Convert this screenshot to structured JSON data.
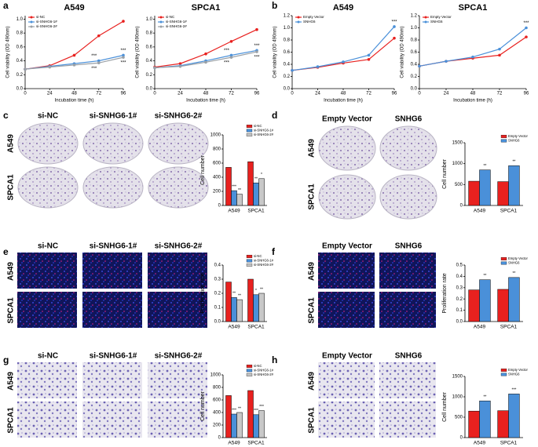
{
  "panel_labels": [
    "a",
    "b",
    "c",
    "d",
    "e",
    "f",
    "g",
    "h"
  ],
  "image_panels": [
    {
      "kind": "plate",
      "columns": [
        "si-NC",
        "si-SNHG6-1#",
        "si-SNHG6-2#"
      ],
      "rows": [
        "A549",
        "SPCA1"
      ]
    },
    {
      "kind": "plate",
      "columns": [
        "Empty Vector",
        "SNHG6"
      ],
      "rows": [
        "A549",
        "SPCA1"
      ]
    },
    {
      "kind": "fluor",
      "columns": [
        "si-NC",
        "si-SNHG6-1#",
        "si-SNHG6-2#"
      ],
      "rows": [
        "A549",
        "SPCA1"
      ]
    },
    {
      "kind": "fluor",
      "columns": [
        "Empty Vector",
        "SNHG6"
      ],
      "rows": [
        "A549",
        "SPCA1"
      ]
    },
    {
      "kind": "stain",
      "columns": [
        "si-NC",
        "si-SNHG6-1#",
        "si-SNHG6-2#"
      ],
      "rows": [
        "A549",
        "SPCA1"
      ]
    },
    {
      "kind": "stain",
      "columns": [
        "Empty Vector",
        "SNHG6"
      ],
      "rows": [
        "A549",
        "SPCA1"
      ]
    }
  ],
  "chart_data": [
    {
      "type": "line",
      "title": "A549",
      "x_label": "Incubation time (h)",
      "y_label": "Cell viability (OD 490nm)",
      "x": [
        0,
        24,
        48,
        72,
        96
      ],
      "xlim": [
        0,
        96
      ],
      "xticks": [
        0,
        24,
        48,
        72,
        96
      ],
      "ylim": [
        0,
        1.05
      ],
      "yticks": [
        {
          "value": 0,
          "label": "0.0"
        },
        0.2,
        0.4,
        0.6,
        0.8,
        {
          "value": 1,
          "label": "1.0"
        }
      ],
      "series": [
        {
          "name": "si-NC",
          "color": "#e8211f",
          "values": [
            0.28,
            0.33,
            0.48,
            0.76,
            0.97
          ]
        },
        {
          "name": "si-SNHG6-1#",
          "color": "#4a90d9",
          "values": [
            0.28,
            0.32,
            0.36,
            0.4,
            0.48
          ],
          "annotations": [
            null,
            null,
            null,
            "***",
            "***"
          ]
        },
        {
          "name": "si-SNHG6-2#",
          "color": "#9aa0a6",
          "values": [
            0.28,
            0.31,
            0.34,
            0.37,
            0.45
          ],
          "annotations": [
            null,
            null,
            null,
            "***",
            "***"
          ]
        }
      ]
    },
    {
      "type": "line",
      "title": "SPCA1",
      "x_label": "Incubation time (h)",
      "y_label": "Cell viability (OD 490nm)",
      "x": [
        0,
        24,
        48,
        72,
        96
      ],
      "xlim": [
        0,
        96
      ],
      "xticks": [
        0,
        24,
        48,
        72,
        96
      ],
      "ylim": [
        0,
        1.05
      ],
      "yticks": [
        {
          "value": 0,
          "label": "0.0"
        },
        0.2,
        0.4,
        0.6,
        0.8,
        {
          "value": 1,
          "label": "1.0"
        }
      ],
      "series": [
        {
          "name": "si-NC",
          "color": "#e8211f",
          "values": [
            0.31,
            0.36,
            0.5,
            0.68,
            0.85
          ]
        },
        {
          "name": "si-SNHG6-1#",
          "color": "#4a90d9",
          "values": [
            0.3,
            0.33,
            0.4,
            0.48,
            0.55
          ],
          "annotations": [
            null,
            null,
            null,
            "***",
            "***"
          ]
        },
        {
          "name": "si-SNHG6-2#",
          "color": "#9aa0a6",
          "values": [
            0.3,
            0.32,
            0.38,
            0.45,
            0.53
          ],
          "annotations": [
            null,
            null,
            null,
            "***",
            "***"
          ]
        }
      ]
    },
    {
      "type": "line",
      "title": "A549",
      "x_label": "Incubation time (h)",
      "y_label": "Cell viability (OD 490nm)",
      "x": [
        0,
        24,
        48,
        72,
        96
      ],
      "xlim": [
        0,
        96
      ],
      "xticks": [
        0,
        24,
        48,
        72,
        96
      ],
      "ylim": [
        0,
        1.2
      ],
      "yticks": [
        {
          "value": 0,
          "label": "0.0"
        },
        0.2,
        0.4,
        0.6,
        0.8,
        {
          "value": 1,
          "label": "1.0"
        },
        1.2
      ],
      "series": [
        {
          "name": "Empty Vector",
          "color": "#e8211f",
          "values": [
            0.3,
            0.35,
            0.42,
            0.48,
            0.83
          ]
        },
        {
          "name": "SNHG6",
          "color": "#4a90d9",
          "values": [
            0.3,
            0.36,
            0.44,
            0.55,
            1.02
          ],
          "annotations": [
            null,
            null,
            null,
            null,
            "***"
          ]
        }
      ]
    },
    {
      "type": "line",
      "title": "SPCA1",
      "x_label": "Incubation time (h)",
      "y_label": "Cell viability (OD 490nm)",
      "x": [
        0,
        24,
        48,
        72,
        96
      ],
      "xlim": [
        0,
        96
      ],
      "xticks": [
        0,
        24,
        48,
        72,
        96
      ],
      "ylim": [
        0,
        1.2
      ],
      "yticks": [
        {
          "value": 0,
          "label": "0.0"
        },
        0.2,
        0.4,
        0.6,
        0.8,
        {
          "value": 1,
          "label": "1.0"
        },
        1.2
      ],
      "series": [
        {
          "name": "Empty Vector",
          "color": "#e8211f",
          "values": [
            0.37,
            0.45,
            0.5,
            0.55,
            0.85
          ]
        },
        {
          "name": "SNHG6",
          "color": "#4a90d9",
          "values": [
            0.37,
            0.45,
            0.52,
            0.65,
            1.0
          ],
          "annotations": [
            null,
            null,
            null,
            null,
            "***"
          ]
        }
      ]
    },
    {
      "type": "bar",
      "y_label": "Cell number",
      "categories": [
        "A549",
        "SPCA1"
      ],
      "ylim": [
        0,
        1000
      ],
      "yticks": [
        0,
        200,
        400,
        600,
        800,
        1000
      ],
      "series": [
        {
          "name": "si-NC",
          "color": "#e8211f",
          "values": [
            540,
            620
          ]
        },
        {
          "name": "si-SNHG6-1#",
          "color": "#4a90d9",
          "values": [
            210,
            320
          ],
          "annotations": [
            "***",
            "**"
          ]
        },
        {
          "name": "si-SNHG6-2#",
          "color": "#c8c8c8",
          "values": [
            160,
            380
          ],
          "annotations": [
            "**",
            "*"
          ]
        }
      ]
    },
    {
      "type": "bar",
      "y_label": "Cell number",
      "categories": [
        "A549",
        "SPCA1"
      ],
      "ylim": [
        0,
        1500
      ],
      "yticks": [
        0,
        500,
        1000,
        1500
      ],
      "series": [
        {
          "name": "Empty Vector",
          "color": "#e8211f",
          "values": [
            580,
            570
          ]
        },
        {
          "name": "SNHG6",
          "color": "#4a90d9",
          "values": [
            850,
            950
          ],
          "annotations": [
            "**",
            "**"
          ]
        }
      ]
    },
    {
      "type": "bar",
      "y_label": "Proliferation rate",
      "categories": [
        "A549",
        "SPCA1"
      ],
      "ylim": [
        0,
        0.4
      ],
      "yticks": [
        {
          "value": 0,
          "label": "0.0"
        },
        0.1,
        0.2,
        0.3,
        0.4
      ],
      "series": [
        {
          "name": "si-NC",
          "color": "#e8211f",
          "values": [
            0.28,
            0.3
          ]
        },
        {
          "name": "si-SNHG6-1#",
          "color": "#4a90d9",
          "values": [
            0.17,
            0.19
          ],
          "annotations": [
            "**",
            "*"
          ]
        },
        {
          "name": "si-SNHG6-2#",
          "color": "#c8c8c8",
          "values": [
            0.155,
            0.2
          ],
          "annotations": [
            "**",
            "**"
          ]
        }
      ]
    },
    {
      "type": "bar",
      "y_label": "Proliferation rate",
      "categories": [
        "A549",
        "SPCA1"
      ],
      "ylim": [
        0,
        0.5
      ],
      "yticks": [
        {
          "value": 0,
          "label": "0.0"
        },
        0.1,
        0.2,
        0.3,
        0.4,
        0.5
      ],
      "series": [
        {
          "name": "Empty Vector",
          "color": "#e8211f",
          "values": [
            0.28,
            0.285
          ]
        },
        {
          "name": "SNHG6",
          "color": "#4a90d9",
          "values": [
            0.37,
            0.39
          ],
          "annotations": [
            "**",
            "**"
          ]
        }
      ]
    },
    {
      "type": "bar",
      "y_label": "Cell number",
      "categories": [
        "A549",
        "SPCA1"
      ],
      "ylim": [
        0,
        1000
      ],
      "yticks": [
        0,
        200,
        400,
        600,
        800,
        1000
      ],
      "series": [
        {
          "name": "si-NC",
          "color": "#e8211f",
          "values": [
            670,
            750
          ]
        },
        {
          "name": "si-SNHG6-1#",
          "color": "#4a90d9",
          "values": [
            375,
            365
          ],
          "annotations": [
            "***",
            "***"
          ]
        },
        {
          "name": "si-SNHG6-2#",
          "color": "#c8c8c8",
          "values": [
            400,
            430
          ],
          "annotations": [
            "**",
            "***"
          ]
        }
      ]
    },
    {
      "type": "bar",
      "y_label": "Cell number",
      "categories": [
        "A549",
        "SPCA1"
      ],
      "ylim": [
        0,
        1500
      ],
      "yticks": [
        0,
        500,
        1000,
        1500
      ],
      "series": [
        {
          "name": "Empty Vector",
          "color": "#e8211f",
          "values": [
            650,
            660
          ]
        },
        {
          "name": "SNHG6",
          "color": "#4a90d9",
          "values": [
            900,
            1070
          ],
          "annotations": [
            "**",
            "***"
          ]
        }
      ]
    }
  ]
}
